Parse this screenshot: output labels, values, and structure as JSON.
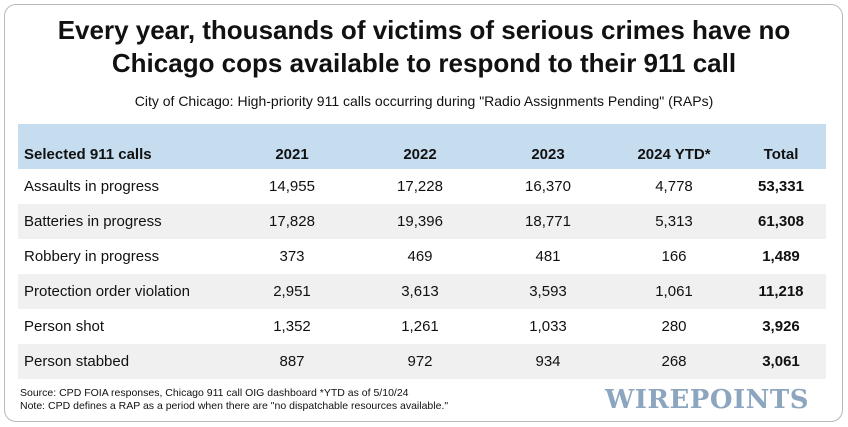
{
  "header": {
    "title_line1": "Every year, thousands of victims of serious crimes have no",
    "title_line2": "Chicago cops available to respond to their 911 call",
    "subtitle": "City of Chicago: High-priority 911 calls occurring during \"Radio Assignments Pending\" (RAPs)"
  },
  "chart_data": {
    "type": "table",
    "columns": [
      "Selected 911 calls",
      "2021",
      "2022",
      "2023",
      "2024 YTD*",
      "Total"
    ],
    "rows": [
      [
        "Assaults in progress",
        "14,955",
        "17,228",
        "16,370",
        "4,778",
        "53,331"
      ],
      [
        "Batteries in progress",
        "17,828",
        "19,396",
        "18,771",
        "5,313",
        "61,308"
      ],
      [
        "Robbery in progress",
        "373",
        "469",
        "481",
        "166",
        "1,489"
      ],
      [
        "Protection order violation",
        "2,951",
        "3,613",
        "3,593",
        "1,061",
        "11,218"
      ],
      [
        "Person shot",
        "1,352",
        "1,261",
        "1,033",
        "280",
        "3,926"
      ],
      [
        "Person stabbed",
        "887",
        "972",
        "934",
        "268",
        "3,061"
      ]
    ]
  },
  "footer": {
    "source": "Source: CPD FOIA responses, Chicago 911 call OIG dashboard  *YTD as of 5/10/24",
    "note": "Note: CPD defines a RAP as a period when there are \"no dispatchable resources available.\"",
    "logo": "WIREPOINTS"
  },
  "colors": {
    "header_band": "#c6ddf0",
    "alt_row": "#f0f0f0",
    "logo": "#8da6c0"
  }
}
